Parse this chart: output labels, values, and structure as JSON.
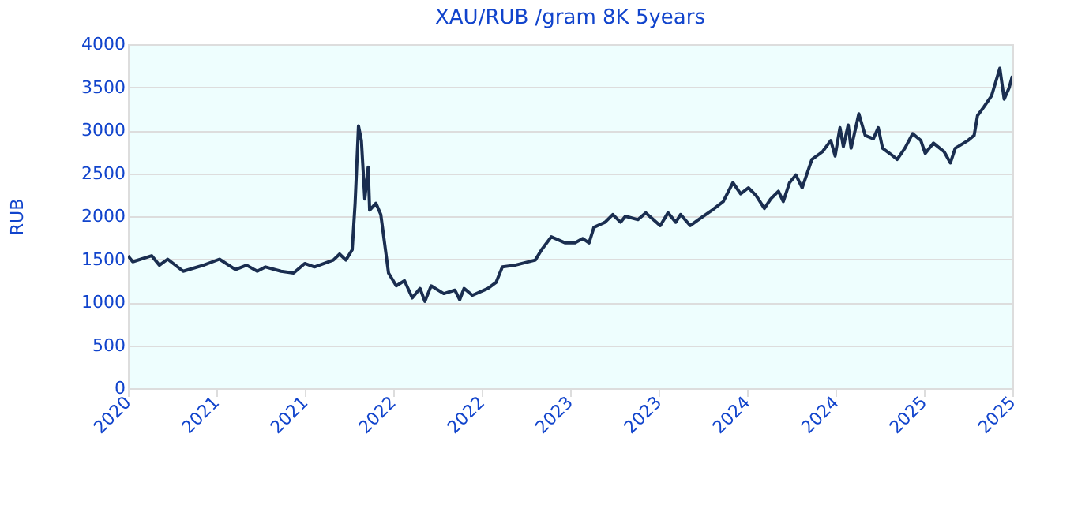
{
  "chart_data": {
    "type": "line",
    "title": "XAU/RUB /gram 8K 5years",
    "ylabel": "RUB",
    "x": [
      "2020-10-20",
      "2020-10-30",
      "2020-12-08",
      "2020-12-24",
      "2021-01-10",
      "2021-02-11",
      "2021-03-25",
      "2021-04-27",
      "2021-05-30",
      "2021-06-22",
      "2021-07-14",
      "2021-07-31",
      "2021-09-01",
      "2021-09-27",
      "2021-10-20",
      "2021-11-09",
      "2021-12-18",
      "2021-12-31",
      "2022-01-13",
      "2022-01-26",
      "2022-02-01",
      "2022-02-08",
      "2022-02-14",
      "2022-02-21",
      "2022-02-28",
      "2022-03-03",
      "2022-03-16",
      "2022-03-26",
      "2022-04-11",
      "2022-04-27",
      "2022-05-14",
      "2022-05-30",
      "2022-06-15",
      "2022-06-25",
      "2022-07-08",
      "2022-08-03",
      "2022-08-26",
      "2022-09-05",
      "2022-09-14",
      "2022-10-01",
      "2022-11-02",
      "2022-11-19",
      "2022-12-02",
      "2022-12-28",
      "2023-02-08",
      "2023-02-21",
      "2023-03-13",
      "2023-04-11",
      "2023-05-01",
      "2023-05-17",
      "2023-05-30",
      "2023-06-09",
      "2023-07-02",
      "2023-07-18",
      "2023-08-03",
      "2023-08-13",
      "2023-09-08",
      "2023-09-24",
      "2023-10-24",
      "2023-11-09",
      "2023-11-25",
      "2023-12-05",
      "2023-12-25",
      "2024-01-16",
      "2024-02-08",
      "2024-03-02",
      "2024-03-22",
      "2024-04-07",
      "2024-04-23",
      "2024-05-09",
      "2024-05-26",
      "2024-06-08",
      "2024-06-24",
      "2024-07-04",
      "2024-07-17",
      "2024-07-30",
      "2024-08-12",
      "2024-09-01",
      "2024-09-23",
      "2024-10-10",
      "2024-10-19",
      "2024-10-29",
      "2024-11-05",
      "2024-11-15",
      "2024-11-21",
      "2024-12-07",
      "2024-12-20",
      "2025-01-06",
      "2025-01-16",
      "2025-01-25",
      "2025-02-11",
      "2025-02-24",
      "2025-03-12",
      "2025-03-28",
      "2025-04-14",
      "2025-04-23",
      "2025-05-10",
      "2025-06-01",
      "2025-06-14",
      "2025-06-24",
      "2025-07-20",
      "2025-08-02",
      "2025-08-09",
      "2025-08-22",
      "2025-09-07",
      "2025-09-24",
      "2025-10-03",
      "2025-10-13",
      "2025-10-20"
    ],
    "series": [
      {
        "color": "#1a2e50",
        "values": [
          1540,
          1470,
          1540,
          1430,
          1500,
          1360,
          1430,
          1500,
          1380,
          1430,
          1360,
          1410,
          1360,
          1340,
          1450,
          1410,
          1490,
          1560,
          1490,
          1610,
          2150,
          3050,
          2880,
          2200,
          2570,
          2070,
          2150,
          2020,
          1340,
          1190,
          1250,
          1050,
          1160,
          1010,
          1190,
          1100,
          1140,
          1030,
          1160,
          1080,
          1160,
          1230,
          1410,
          1430,
          1490,
          1610,
          1760,
          1690,
          1690,
          1740,
          1690,
          1870,
          1930,
          2020,
          1930,
          2000,
          1960,
          2040,
          1890,
          2040,
          1930,
          2020,
          1890,
          1980,
          2070,
          2170,
          2390,
          2260,
          2330,
          2240,
          2090,
          2200,
          2290,
          2170,
          2390,
          2480,
          2330,
          2660,
          2750,
          2880,
          2700,
          3030,
          2810,
          3060,
          2790,
          3190,
          2940,
          2900,
          3030,
          2790,
          2720,
          2660,
          2790,
          2960,
          2880,
          2730,
          2850,
          2750,
          2620,
          2790,
          2880,
          2940,
          3170,
          3270,
          3400,
          3720,
          3360,
          3490,
          3630
        ]
      }
    ],
    "xlim": [
      "2020-10-20",
      "2025-10-20"
    ],
    "xticks": [
      {
        "value": "2020-10-20",
        "label": "2020"
      },
      {
        "value": "2021-04-20",
        "label": "2021"
      },
      {
        "value": "2021-10-20",
        "label": "2021"
      },
      {
        "value": "2022-04-20",
        "label": "2022"
      },
      {
        "value": "2022-10-20",
        "label": "2022"
      },
      {
        "value": "2023-04-20",
        "label": "2023"
      },
      {
        "value": "2023-10-20",
        "label": "2023"
      },
      {
        "value": "2024-04-20",
        "label": "2024"
      },
      {
        "value": "2024-10-20",
        "label": "2024"
      },
      {
        "value": "2025-04-20",
        "label": "2025"
      },
      {
        "value": "2025-10-20",
        "label": "2025"
      }
    ],
    "ylim": [
      0,
      4000
    ],
    "yticks": [
      0,
      500,
      1000,
      1500,
      2000,
      2500,
      3000,
      3500,
      4000
    ],
    "grid": "y",
    "marker": "none",
    "line_style": "solid"
  }
}
